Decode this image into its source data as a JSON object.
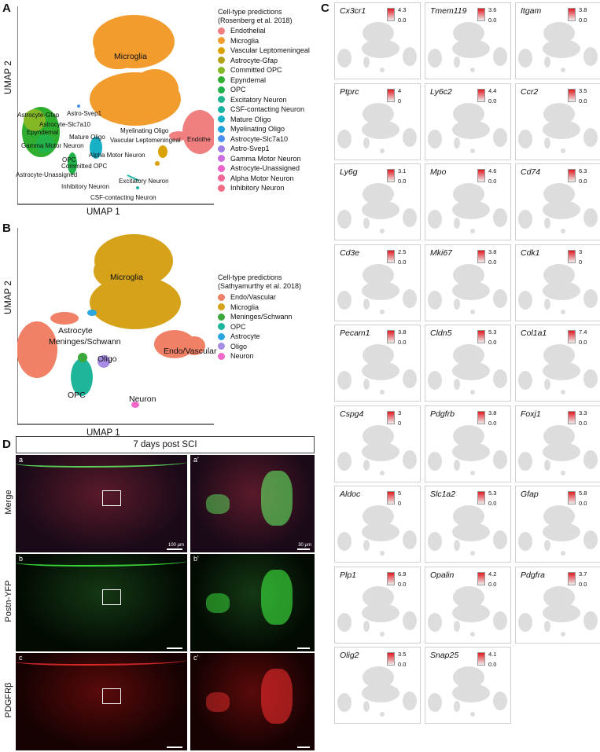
{
  "panels": {
    "A": {
      "letter": "A",
      "xlabel": "UMAP 1",
      "ylabel": "UMAP 2",
      "legend_title_1": "Cell-type predictions",
      "legend_title_2": "(Rosenberg et al. 2018)",
      "legend": [
        {
          "label": "Endothelial",
          "color": "#f08080"
        },
        {
          "label": "Microglia",
          "color": "#f39c2e"
        },
        {
          "label": "Vascular Leptomeningeal",
          "color": "#d9a200"
        },
        {
          "label": "Astrocyte-Gfap",
          "color": "#b5a21c"
        },
        {
          "label": "Committed OPC",
          "color": "#84b826"
        },
        {
          "label": "Epyndemal",
          "color": "#2fae2f"
        },
        {
          "label": "OPC",
          "color": "#23b24a"
        },
        {
          "label": "Excitatory Neuron",
          "color": "#1fb58c"
        },
        {
          "label": "CSF-contacting Neuron",
          "color": "#19b3a3"
        },
        {
          "label": "Mature Oligo",
          "color": "#17b0c4"
        },
        {
          "label": "Myelinating Oligo",
          "color": "#22a3dd"
        },
        {
          "label": "Astrocyte-Slc7a10",
          "color": "#4a8ff0"
        },
        {
          "label": "Astro-Svep1",
          "color": "#a07ee8"
        },
        {
          "label": "Gamma Motor Neuron",
          "color": "#cc6ee0"
        },
        {
          "label": "Astrocyte-Unassigned",
          "color": "#ec62c8"
        },
        {
          "label": "Alpha Motor Neuron",
          "color": "#f2679a"
        },
        {
          "label": "Inhibitory Neuron",
          "color": "#f46d84"
        }
      ],
      "labels": {
        "microglia": "Microglia",
        "astro_gfap": "Astrocyte-Gfap",
        "astro_svep1": "Astro-Svep1",
        "astro_slc": "Astrocyte-Slc7a10",
        "epyndemal": "Epyndemal",
        "myelinating": "Myelinating Oligo",
        "mature": "Mature Oligo",
        "vascular": "Vascular Leptomeningeal",
        "endothe": "Endothe",
        "gamma": "Gamma Motor Neuron",
        "alpha": "Alpha Motor Neuron",
        "opc": "OPC",
        "committed": "Committed OPC",
        "unassigned": "Astrocyte-Unassigned",
        "excitatory": "Excitatory Neuron",
        "inhibitory": "Inhibitory Neuron",
        "csf": "CSF-contacting Neuron"
      }
    },
    "B": {
      "letter": "B",
      "xlabel": "UMAP 1",
      "ylabel": "UMAP 2",
      "legend_title_1": "Cell-type predictions",
      "legend_title_2": "(Sathyamurthy et al. 2018)",
      "legend": [
        {
          "label": "Endo/Vascular",
          "color": "#f08066"
        },
        {
          "label": "Microglia",
          "color": "#d6a21a"
        },
        {
          "label": "Meninges/Schwann",
          "color": "#3aa83a"
        },
        {
          "label": "OPC",
          "color": "#1fb59a"
        },
        {
          "label": "Astrocyte",
          "color": "#2aa6e0"
        },
        {
          "label": "Oligo",
          "color": "#a78ce6"
        },
        {
          "label": "Neuron",
          "color": "#f06ac9"
        }
      ],
      "labels": {
        "microglia": "Microglia",
        "astrocyte": "Astrocyte",
        "meninges": "Meninges/Schwann",
        "endo": "Endo/Vascular",
        "oligo": "Oligo",
        "opc": "OPC",
        "neuron": "Neuron"
      }
    },
    "C": {
      "letter": "C",
      "genes": [
        {
          "name": "Cx3cr1",
          "max": "4.3",
          "min": "0.0"
        },
        {
          "name": "Tmem119",
          "max": "3.6",
          "min": "0.0"
        },
        {
          "name": "Itgam",
          "max": "3.8",
          "min": "0.0"
        },
        {
          "name": "Ptprc",
          "max": "4",
          "min": "0"
        },
        {
          "name": "Ly6c2",
          "max": "4.4",
          "min": "0.0"
        },
        {
          "name": "Ccr2",
          "max": "3.5",
          "min": "0.0"
        },
        {
          "name": "Ly6g",
          "max": "3.1",
          "min": "0.0"
        },
        {
          "name": "Mpo",
          "max": "4.6",
          "min": "0.0"
        },
        {
          "name": "Cd74",
          "max": "6.3",
          "min": "0.0"
        },
        {
          "name": "Cd3e",
          "max": "2.5",
          "min": "0.0"
        },
        {
          "name": "Mki67",
          "max": "3.8",
          "min": "0.0"
        },
        {
          "name": "Cdk1",
          "max": "3",
          "min": "0"
        },
        {
          "name": "Pecam1",
          "max": "3.8",
          "min": "0.0"
        },
        {
          "name": "Cldn5",
          "max": "5.3",
          "min": "0.0"
        },
        {
          "name": "Col1a1",
          "max": "7.4",
          "min": "0.0"
        },
        {
          "name": "Cspg4",
          "max": "3",
          "min": "0"
        },
        {
          "name": "Pdgfrb",
          "max": "3.8",
          "min": "0.0"
        },
        {
          "name": "Foxj1",
          "max": "3.3",
          "min": "0.0"
        },
        {
          "name": "Aldoc",
          "max": "5",
          "min": "0"
        },
        {
          "name": "Slc1a2",
          "max": "5.3",
          "min": "0.0"
        },
        {
          "name": "Gfap",
          "max": "5.8",
          "min": "0.0"
        },
        {
          "name": "Plp1",
          "max": "6.9",
          "min": "0.0"
        },
        {
          "name": "Opalin",
          "max": "4.2",
          "min": "0.0"
        },
        {
          "name": "Pdgfra",
          "max": "3.7",
          "min": "0.0"
        },
        {
          "name": "Olig2",
          "max": "3.5",
          "min": "0.0"
        },
        {
          "name": "Snap25",
          "max": "4.1",
          "min": "0.0"
        }
      ]
    },
    "D": {
      "letter": "D",
      "title": "7 days post SCI",
      "rows": [
        {
          "label": "Merge",
          "left": "a",
          "right": "a'",
          "scale_left": "100 µm",
          "scale_right": "30 µm"
        },
        {
          "label": "Postn-YFP",
          "left": "b",
          "right": "b'"
        },
        {
          "label": "PDGFRβ",
          "left": "c",
          "right": "c'"
        }
      ]
    }
  }
}
